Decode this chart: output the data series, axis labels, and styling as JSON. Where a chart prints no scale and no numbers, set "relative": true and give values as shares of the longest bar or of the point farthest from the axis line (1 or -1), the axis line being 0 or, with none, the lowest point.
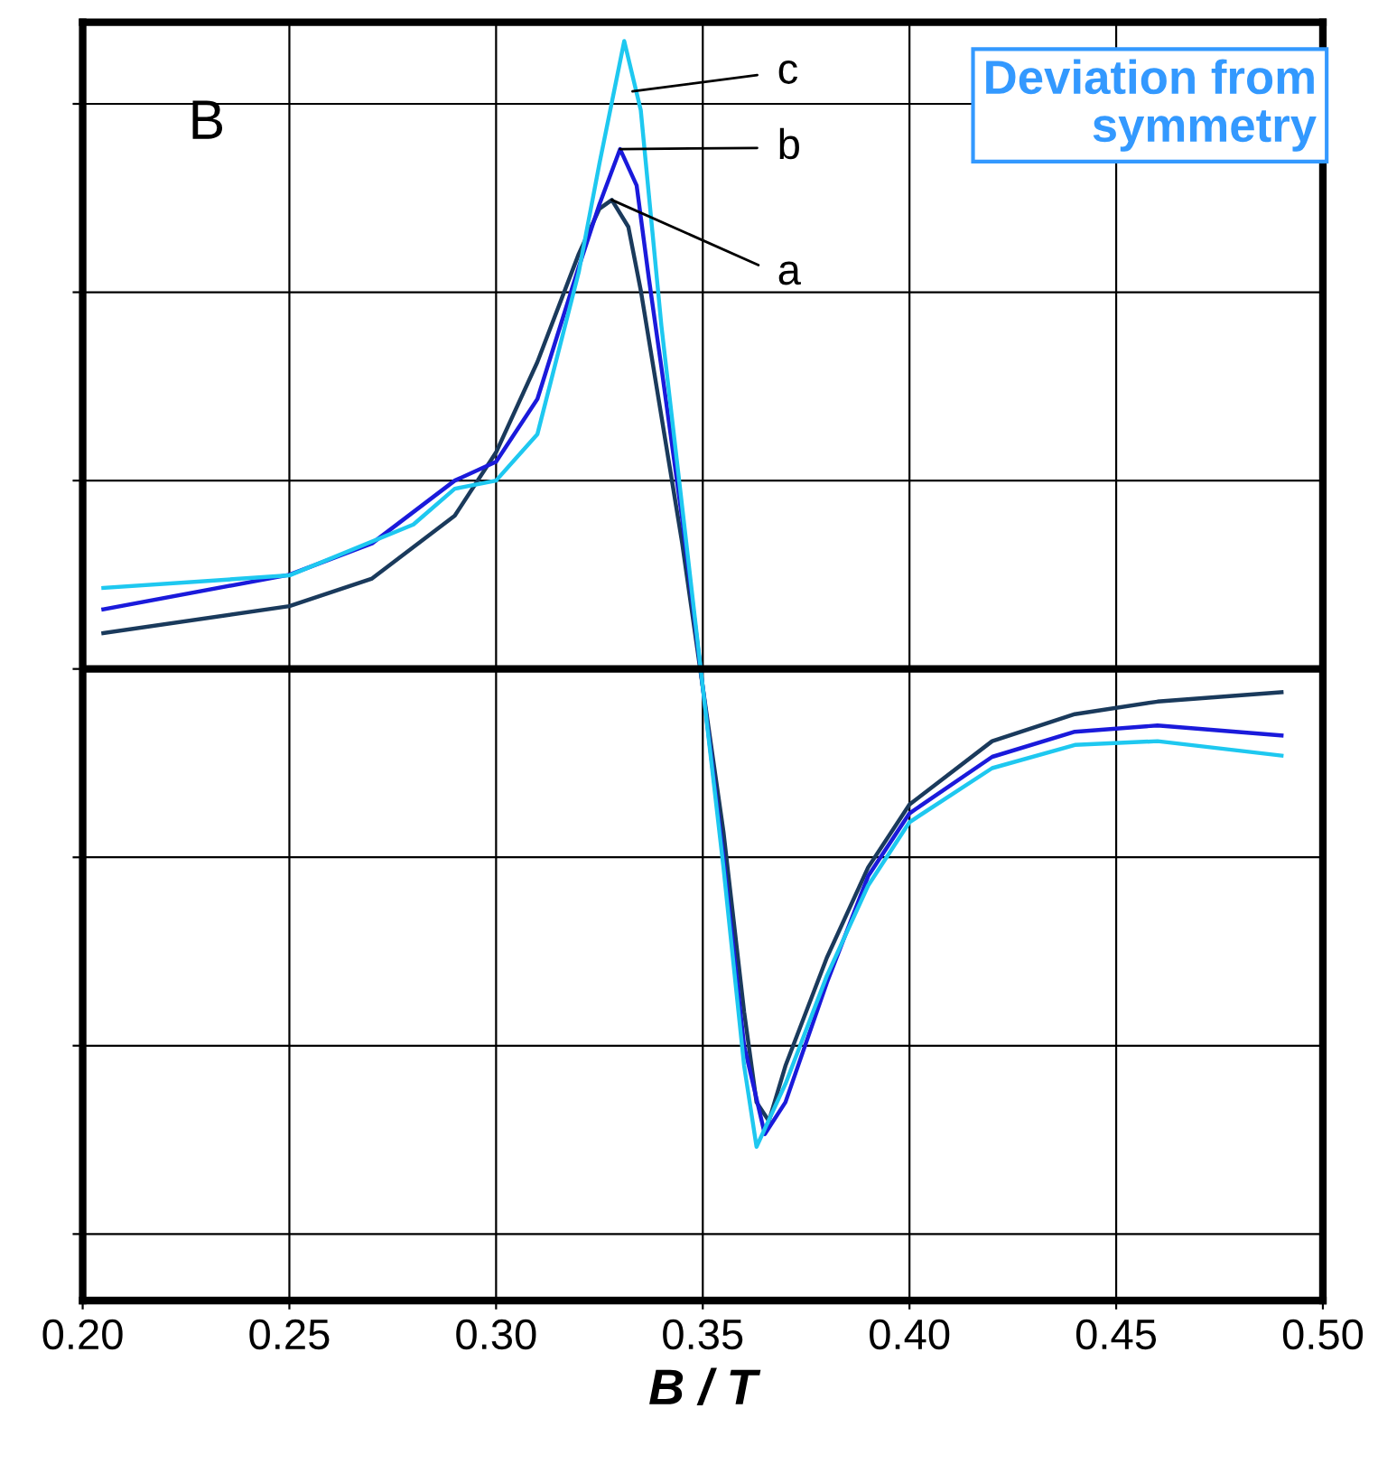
{
  "chart_data": {
    "type": "line",
    "relative": true,
    "xlabel": "B / T",
    "xlim": [
      0.2,
      0.5
    ],
    "xticks": [
      {
        "value": 0.2,
        "label": "0.20"
      },
      {
        "value": 0.25,
        "label": "0.25"
      },
      {
        "value": 0.3,
        "label": "0.30"
      },
      {
        "value": 0.35,
        "label": "0.35"
      },
      {
        "value": 0.4,
        "label": "0.40"
      },
      {
        "value": 0.45,
        "label": "0.45"
      },
      {
        "value": 0.5,
        "label": "0.50"
      }
    ],
    "tick_labels": "x",
    "grid": true,
    "marker": "none",
    "line_style": "solid",
    "series": [
      {
        "color": "#1a3a5c",
        "x": [
          0.205,
          0.25,
          0.27,
          0.29,
          0.3,
          0.31,
          0.32,
          0.325,
          0.328,
          0.332,
          0.335,
          0.34,
          0.345,
          0.35,
          0.355,
          0.36,
          0.363,
          0.366,
          0.37,
          0.38,
          0.39,
          0.4,
          0.42,
          0.44,
          0.46,
          0.49
        ],
        "values": [
          0.057,
          0.1,
          0.144,
          0.244,
          0.345,
          0.489,
          0.661,
          0.733,
          0.747,
          0.704,
          0.603,
          0.402,
          0.201,
          -0.029,
          -0.259,
          -0.546,
          -0.69,
          -0.72,
          -0.632,
          -0.46,
          -0.316,
          -0.216,
          -0.115,
          -0.072,
          -0.052,
          -0.037
        ]
      },
      {
        "color": "#1a1adb",
        "x": [
          0.205,
          0.25,
          0.27,
          0.28,
          0.29,
          0.3,
          0.31,
          0.32,
          0.325,
          0.33,
          0.334,
          0.337,
          0.34,
          0.345,
          0.35,
          0.355,
          0.36,
          0.365,
          0.37,
          0.38,
          0.39,
          0.4,
          0.42,
          0.44,
          0.46,
          0.49
        ],
        "values": [
          0.095,
          0.15,
          0.2,
          0.25,
          0.3,
          0.33,
          0.43,
          0.64,
          0.74,
          0.828,
          0.77,
          0.62,
          0.48,
          0.24,
          -0.029,
          -0.3,
          -0.6,
          -0.741,
          -0.69,
          -0.5,
          -0.33,
          -0.23,
          -0.14,
          -0.1,
          -0.09,
          -0.106
        ]
      },
      {
        "color": "#1ec8f0",
        "x": [
          0.205,
          0.25,
          0.28,
          0.29,
          0.3,
          0.31,
          0.32,
          0.325,
          0.331,
          0.335,
          0.34,
          0.345,
          0.35,
          0.355,
          0.36,
          0.363,
          0.37,
          0.38,
          0.39,
          0.4,
          0.42,
          0.44,
          0.46,
          0.49
        ],
        "values": [
          0.129,
          0.149,
          0.23,
          0.287,
          0.3,
          0.374,
          0.632,
          0.805,
          1.0,
          0.89,
          0.546,
          0.259,
          -0.029,
          -0.316,
          -0.632,
          -0.761,
          -0.661,
          -0.489,
          -0.345,
          -0.244,
          -0.158,
          -0.121,
          -0.115,
          -0.138
        ]
      }
    ],
    "annotations": [
      "B",
      {
        "text": "c",
        "x": 0.333,
        "y": 0.92
      },
      {
        "text": "b",
        "x": 0.33,
        "y": 0.828
      },
      {
        "text": "a",
        "x": 0.328,
        "y": 0.747
      },
      "Deviation from symmetry"
    ]
  }
}
